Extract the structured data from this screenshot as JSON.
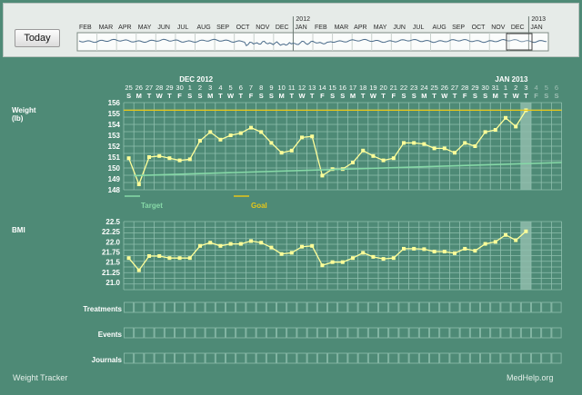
{
  "toolbar": {
    "today_label": "Today"
  },
  "overview": {
    "months": [
      "FEB",
      "MAR",
      "APR",
      "MAY",
      "JUN",
      "JUL",
      "AUG",
      "SEP",
      "OCT",
      "NOV",
      "DEC",
      "JAN",
      "FEB",
      "MAR",
      "APR",
      "MAY",
      "JUN",
      "JUL",
      "AUG",
      "SEP",
      "OCT",
      "NOV",
      "DEC",
      "JAN"
    ],
    "year_labels": [
      {
        "text": "2012",
        "month_index": 11
      },
      {
        "text": "2013",
        "month_index": 23
      }
    ]
  },
  "calendar": {
    "month_labels": [
      {
        "text": "DEC 2012",
        "day_index": 6
      },
      {
        "text": "JAN 2013",
        "day_index": 37
      }
    ],
    "day_numbers": [
      "25",
      "26",
      "27",
      "28",
      "29",
      "30",
      "1",
      "2",
      "3",
      "4",
      "5",
      "6",
      "7",
      "8",
      "9",
      "10",
      "11",
      "12",
      "13",
      "14",
      "15",
      "16",
      "17",
      "18",
      "19",
      "20",
      "21",
      "22",
      "23",
      "24",
      "25",
      "26",
      "27",
      "28",
      "29",
      "30",
      "31",
      "1",
      "2",
      "3",
      "4",
      "5",
      "6"
    ],
    "weekday_letters": [
      "S",
      "M",
      "T",
      "W",
      "T",
      "F",
      "S",
      "S",
      "M",
      "T",
      "W",
      "T",
      "F",
      "S",
      "S",
      "M",
      "T",
      "W",
      "T",
      "F",
      "S",
      "S",
      "M",
      "T",
      "W",
      "T",
      "F",
      "S",
      "S",
      "M",
      "T",
      "W",
      "T",
      "F",
      "S",
      "S",
      "M",
      "T",
      "W",
      "T",
      "F",
      "S",
      "S"
    ],
    "today_index": 39
  },
  "weight": {
    "label_line1": "Weight",
    "label_line2": "(lb)",
    "y_ticks": [
      "156",
      "155",
      "154",
      "153",
      "152",
      "151",
      "150",
      "149",
      "148"
    ],
    "legend_target": "Target",
    "legend_goal": "Goal"
  },
  "bmi": {
    "label": "BMI",
    "y_ticks": [
      "22.5",
      "22.25",
      "22.0",
      "21.75",
      "21.5",
      "21.25",
      "21.0"
    ]
  },
  "rows": {
    "treatments": "Treatments",
    "events": "Events",
    "journals": "Journals"
  },
  "footer": {
    "left": "Weight Tracker",
    "right": "MedHelp.org"
  },
  "colors": {
    "line": "#ffff99",
    "goal": "#e6c619",
    "target": "#86d9a7",
    "grid": "#8fbfae",
    "today_band": "#86b4a3"
  },
  "chart_data": [
    {
      "type": "line",
      "title": "Weight (lb)",
      "ylim": [
        148,
        156
      ],
      "series": [
        {
          "values": [
            150.9,
            148.5,
            151.0,
            151.1,
            150.9,
            150.7,
            150.8,
            152.5,
            153.3,
            152.6,
            153.0,
            153.2,
            153.7,
            153.3,
            152.3,
            151.4,
            151.6,
            152.8,
            152.9,
            149.3,
            149.9,
            149.9,
            150.5,
            151.6,
            151.1,
            150.7,
            150.9,
            152.3,
            152.3,
            152.2,
            151.8,
            151.8,
            151.4,
            152.3,
            152.0,
            153.3,
            153.5,
            154.6,
            153.8,
            155.3
          ]
        }
      ],
      "goal": 155.3,
      "target_line": {
        "start": 149.3,
        "end": 150.5
      }
    },
    {
      "type": "line",
      "title": "BMI",
      "ylim": [
        21.0,
        22.5
      ],
      "series": [
        {
          "values": [
            21.6,
            21.3,
            21.65,
            21.65,
            21.6,
            21.6,
            21.6,
            21.9,
            21.98,
            21.9,
            21.95,
            21.95,
            22.02,
            21.98,
            21.86,
            21.7,
            21.73,
            21.88,
            21.9,
            21.42,
            21.5,
            21.5,
            21.6,
            21.73,
            21.63,
            21.58,
            21.6,
            21.83,
            21.83,
            21.82,
            21.76,
            21.76,
            21.72,
            21.83,
            21.78,
            21.95,
            22.0,
            22.17,
            22.04,
            22.26
          ]
        }
      ]
    }
  ]
}
